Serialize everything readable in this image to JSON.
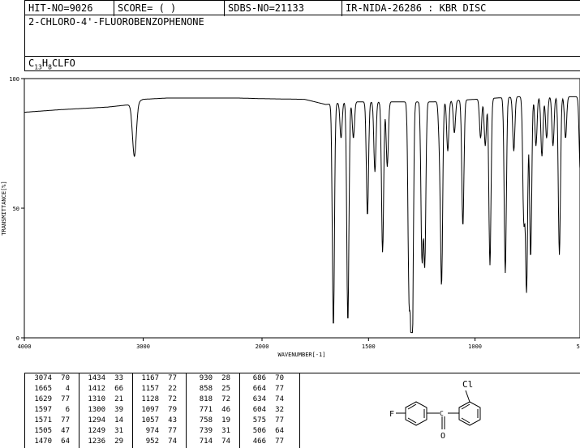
{
  "header": {
    "hit_no": "HIT-NO=9026",
    "score": "SCORE=  (   )",
    "sdbs_no": "SDBS-NO=21133",
    "ir_nida": "IR-NIDA-26286 : KBR DISC",
    "compound_name": "2-CHLORO-4'-FLUOROBENZOPHENONE",
    "formula": {
      "c": "C",
      "c_sub": "13",
      "h": "H",
      "h_sub": "8",
      "rest": "CLFO"
    }
  },
  "chart_data": {
    "type": "line",
    "xlabel": "WAVENUMBER[-1]",
    "ylabel": "TRANSMITTANCE[%]",
    "xlim": [
      4000,
      400
    ],
    "ylim": [
      0,
      100
    ],
    "x_ticks": [
      "4000",
      "3000",
      "2000",
      "1500",
      "1000",
      "500"
    ],
    "y_ticks": [
      "0",
      "50",
      "100"
    ],
    "baseline": [
      [
        4000,
        87
      ],
      [
        3700,
        88
      ],
      [
        3500,
        88.5
      ],
      [
        3300,
        89
      ],
      [
        3100,
        90
      ],
      [
        3000,
        92
      ],
      [
        2800,
        92.5
      ],
      [
        2500,
        92.5
      ],
      [
        2200,
        92.5
      ],
      [
        1800,
        92
      ],
      [
        1700,
        90
      ],
      [
        1600,
        91
      ],
      [
        1400,
        91
      ],
      [
        1200,
        91
      ],
      [
        1000,
        92
      ],
      [
        800,
        93
      ],
      [
        600,
        93
      ],
      [
        500,
        93
      ],
      [
        400,
        87
      ]
    ],
    "peaks": [
      {
        "x": 3074,
        "y": 70
      },
      {
        "x": 1665,
        "y": 4
      },
      {
        "x": 1629,
        "y": 77
      },
      {
        "x": 1597,
        "y": 6
      },
      {
        "x": 1571,
        "y": 77
      },
      {
        "x": 1505,
        "y": 47
      },
      {
        "x": 1470,
        "y": 64
      },
      {
        "x": 1434,
        "y": 33
      },
      {
        "x": 1412,
        "y": 66
      },
      {
        "x": 1310,
        "y": 21
      },
      {
        "x": 1300,
        "y": 39
      },
      {
        "x": 1294,
        "y": 14
      },
      {
        "x": 1249,
        "y": 31
      },
      {
        "x": 1236,
        "y": 29
      },
      {
        "x": 1167,
        "y": 77
      },
      {
        "x": 1157,
        "y": 22
      },
      {
        "x": 1128,
        "y": 72
      },
      {
        "x": 1097,
        "y": 79
      },
      {
        "x": 1057,
        "y": 43
      },
      {
        "x": 974,
        "y": 77
      },
      {
        "x": 952,
        "y": 74
      },
      {
        "x": 930,
        "y": 28
      },
      {
        "x": 858,
        "y": 25
      },
      {
        "x": 818,
        "y": 72
      },
      {
        "x": 771,
        "y": 46
      },
      {
        "x": 758,
        "y": 19
      },
      {
        "x": 739,
        "y": 31
      },
      {
        "x": 714,
        "y": 74
      },
      {
        "x": 686,
        "y": 70
      },
      {
        "x": 664,
        "y": 77
      },
      {
        "x": 634,
        "y": 74
      },
      {
        "x": 604,
        "y": 32
      },
      {
        "x": 575,
        "y": 77
      },
      {
        "x": 506,
        "y": 64
      },
      {
        "x": 466,
        "y": 77
      }
    ]
  },
  "peak_table": [
    [
      "3074",
      "70",
      "1434",
      "33",
      "1167",
      "77",
      "930",
      "28",
      "686",
      "70"
    ],
    [
      "1665",
      "4",
      "1412",
      "66",
      "1157",
      "22",
      "858",
      "25",
      "664",
      "77"
    ],
    [
      "1629",
      "77",
      "1310",
      "21",
      "1128",
      "72",
      "818",
      "72",
      "634",
      "74"
    ],
    [
      "1597",
      "6",
      "1300",
      "39",
      "1097",
      "79",
      "771",
      "46",
      "604",
      "32"
    ],
    [
      "1571",
      "77",
      "1294",
      "14",
      "1057",
      "43",
      "758",
      "19",
      "575",
      "77"
    ],
    [
      "1505",
      "47",
      "1249",
      "31",
      "974",
      "77",
      "739",
      "31",
      "506",
      "64"
    ],
    [
      "1470",
      "64",
      "1236",
      "29",
      "952",
      "74",
      "714",
      "74",
      "466",
      "77"
    ]
  ],
  "structure": {
    "atom_cl": "Cl",
    "atom_f": "F",
    "atom_o": "O",
    "atom_c": "C"
  }
}
